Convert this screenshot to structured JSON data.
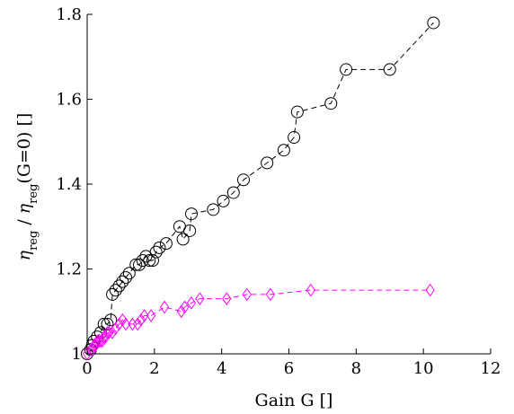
{
  "chart_data": {
    "type": "scatter",
    "xlabel": "Gain G []",
    "ylabel": {
      "eta": "η",
      "sub1": "reg",
      "mid": " / ",
      "sub2": "reg",
      "tail": "(G=0) []"
    },
    "xlim": [
      0,
      12
    ],
    "ylim": [
      1,
      1.8
    ],
    "xticks": [
      0,
      2,
      4,
      6,
      8,
      10,
      12
    ],
    "yticks": [
      1,
      1.2,
      1.4,
      1.6,
      1.8
    ],
    "xtick_labels": [
      "0",
      "2",
      "4",
      "6",
      "8",
      "10",
      "12"
    ],
    "ytick_labels": [
      "1",
      "1.2",
      "1.4",
      "1.6",
      "1.8"
    ],
    "grid": false,
    "series": [
      {
        "marker": "circle",
        "color": "#000000",
        "line": "dashed",
        "points": [
          [
            0.0,
            1.0
          ],
          [
            0.1,
            1.01
          ],
          [
            0.15,
            1.02
          ],
          [
            0.2,
            1.03
          ],
          [
            0.3,
            1.04
          ],
          [
            0.4,
            1.05
          ],
          [
            0.5,
            1.07
          ],
          [
            0.6,
            1.07
          ],
          [
            0.7,
            1.08
          ],
          [
            0.75,
            1.14
          ],
          [
            0.85,
            1.15
          ],
          [
            0.95,
            1.16
          ],
          [
            1.05,
            1.17
          ],
          [
            1.15,
            1.18
          ],
          [
            1.25,
            1.19
          ],
          [
            1.45,
            1.21
          ],
          [
            1.55,
            1.21
          ],
          [
            1.65,
            1.22
          ],
          [
            1.75,
            1.23
          ],
          [
            1.85,
            1.22
          ],
          [
            1.95,
            1.22
          ],
          [
            2.05,
            1.24
          ],
          [
            2.15,
            1.25
          ],
          [
            2.35,
            1.26
          ],
          [
            2.75,
            1.3
          ],
          [
            2.85,
            1.27
          ],
          [
            3.05,
            1.29
          ],
          [
            3.1,
            1.33
          ],
          [
            3.75,
            1.34
          ],
          [
            4.05,
            1.36
          ],
          [
            4.35,
            1.38
          ],
          [
            4.65,
            1.41
          ],
          [
            5.35,
            1.45
          ],
          [
            5.85,
            1.48
          ],
          [
            6.15,
            1.51
          ],
          [
            6.25,
            1.57
          ],
          [
            7.25,
            1.59
          ],
          [
            7.7,
            1.67
          ],
          [
            9.0,
            1.67
          ],
          [
            10.3,
            1.78
          ]
        ]
      },
      {
        "marker": "diamond",
        "color": "#ff00ff",
        "line": "dashed",
        "points": [
          [
            0.0,
            1.0
          ],
          [
            0.1,
            1.01
          ],
          [
            0.15,
            1.01
          ],
          [
            0.2,
            1.02
          ],
          [
            0.25,
            1.02
          ],
          [
            0.3,
            1.03
          ],
          [
            0.35,
            1.03
          ],
          [
            0.4,
            1.03
          ],
          [
            0.45,
            1.03
          ],
          [
            0.5,
            1.04
          ],
          [
            0.55,
            1.04
          ],
          [
            0.6,
            1.05
          ],
          [
            0.65,
            1.05
          ],
          [
            0.75,
            1.05
          ],
          [
            0.85,
            1.06
          ],
          [
            0.95,
            1.07
          ],
          [
            1.05,
            1.08
          ],
          [
            1.15,
            1.07
          ],
          [
            1.35,
            1.07
          ],
          [
            1.5,
            1.07
          ],
          [
            1.6,
            1.08
          ],
          [
            1.7,
            1.09
          ],
          [
            1.9,
            1.09
          ],
          [
            2.3,
            1.11
          ],
          [
            2.8,
            1.1
          ],
          [
            2.9,
            1.11
          ],
          [
            3.1,
            1.12
          ],
          [
            3.35,
            1.13
          ],
          [
            4.15,
            1.13
          ],
          [
            4.75,
            1.14
          ],
          [
            5.45,
            1.14
          ],
          [
            6.65,
            1.15
          ],
          [
            10.2,
            1.15
          ]
        ]
      }
    ]
  }
}
